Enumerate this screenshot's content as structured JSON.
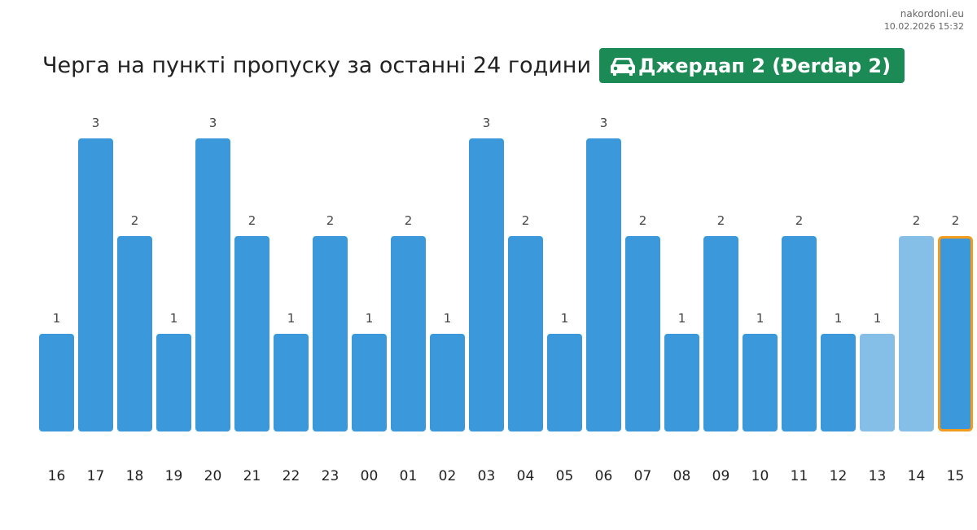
{
  "watermark": {
    "site": "nakordoni.eu",
    "timestamp": "10.02.2026 15:32"
  },
  "header": {
    "title": "Черга на пункті пропуску за останні 24 години",
    "badge_icon": "car-icon",
    "badge_label": "Джердап 2 (Đerdap 2)",
    "badge_color": "#1c8a54"
  },
  "chart_data": {
    "type": "bar",
    "title": "Черга на пункті пропуску за останні 24 години",
    "xlabel": "",
    "ylabel": "",
    "ylim": [
      0,
      3
    ],
    "grid": false,
    "categories": [
      "16",
      "17",
      "18",
      "19",
      "20",
      "21",
      "22",
      "23",
      "00",
      "01",
      "02",
      "03",
      "04",
      "05",
      "06",
      "07",
      "08",
      "09",
      "10",
      "11",
      "12",
      "13",
      "14",
      "15"
    ],
    "values": [
      1,
      3,
      2,
      1,
      3,
      2,
      1,
      2,
      1,
      2,
      1,
      3,
      2,
      1,
      3,
      2,
      1,
      2,
      1,
      2,
      1,
      1,
      2,
      2
    ],
    "colors": {
      "bar": "#3a98db",
      "bar_light": "#85bfe8",
      "highlight_border": "#f29c1f"
    },
    "light_bars": [
      "13",
      "14"
    ],
    "highlighted_bar": "15"
  }
}
